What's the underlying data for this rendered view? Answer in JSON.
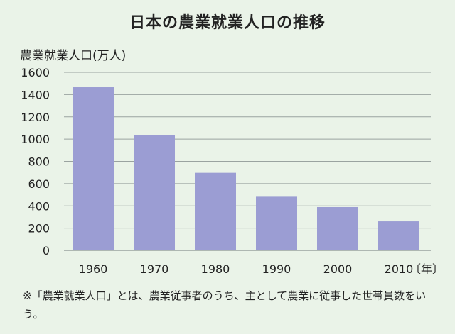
{
  "chart_data": {
    "type": "bar",
    "title": "日本の農業就業人口の推移",
    "ylabel": "農業就業人口(万人)",
    "xlabel": "",
    "x_unit": "〔年〕",
    "categories": [
      "1960",
      "1970",
      "1980",
      "1990",
      "2000",
      "2010"
    ],
    "values": [
      1466,
      1035,
      697,
      482,
      389,
      261
    ],
    "ylim": [
      0,
      1600
    ],
    "yticks": [
      0,
      200,
      400,
      600,
      800,
      1000,
      1200,
      1400,
      1600
    ],
    "grid": true,
    "bar_color": "#9b9dd3",
    "grid_color": "#9aa3a0"
  },
  "note": "※「農業就業人口」とは、農業従事者のうち、主として農業に従事した世帯員数をいう。"
}
